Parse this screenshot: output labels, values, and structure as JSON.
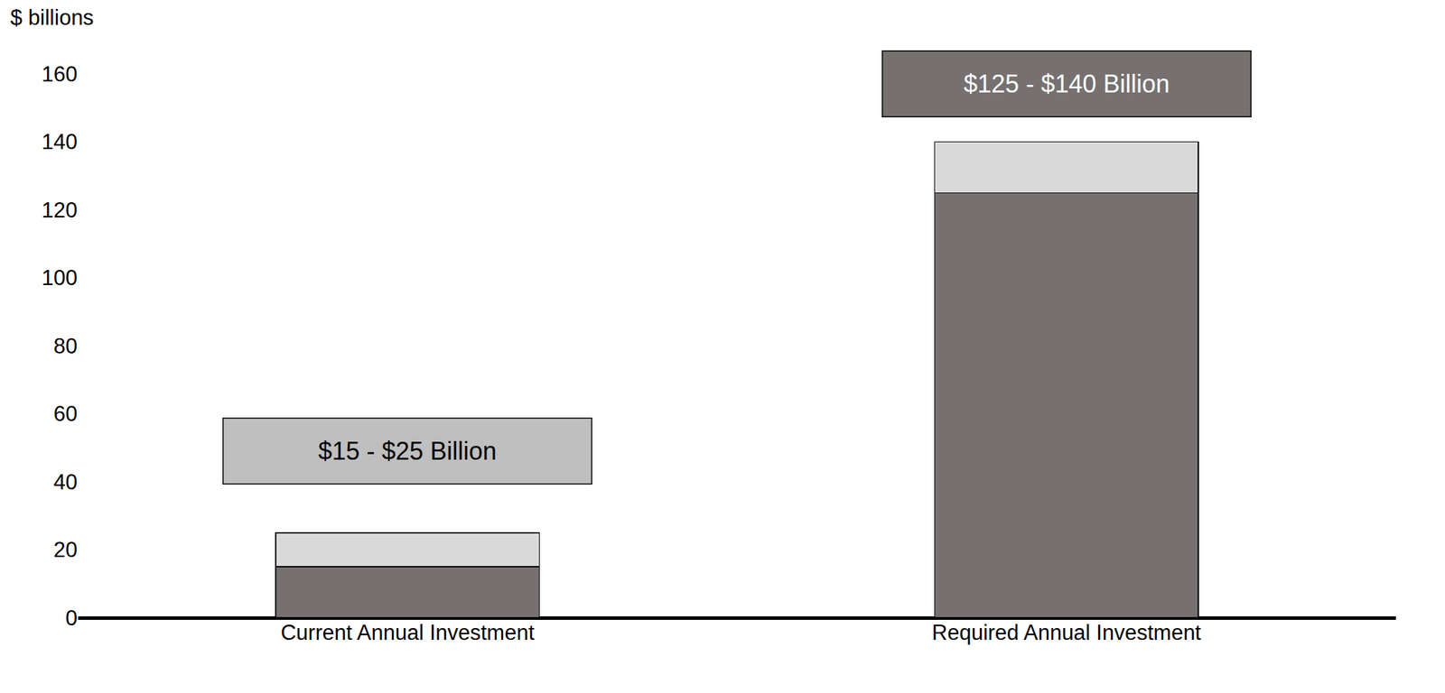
{
  "chart_data": {
    "type": "bar",
    "stacked": true,
    "ylabel": "$ billions",
    "categories": [
      "Current Annual Investment",
      "Required Annual Investment"
    ],
    "series": [
      {
        "color": "#767170",
        "values": [
          15,
          125
        ]
      },
      {
        "color": "#d9d9d9",
        "values": [
          10,
          15
        ]
      }
    ],
    "ylim": [
      0,
      160
    ],
    "yticks": [
      0,
      20,
      40,
      60,
      80,
      100,
      120,
      140,
      160
    ],
    "grid": false,
    "annotations": [
      {
        "text": "$15 - $25 Billion",
        "x": 0,
        "y": 49,
        "color": "#bfbfbf"
      },
      {
        "text": "$125 - $140 Billion",
        "x": 1,
        "y": 157,
        "color": "#767170"
      }
    ]
  }
}
